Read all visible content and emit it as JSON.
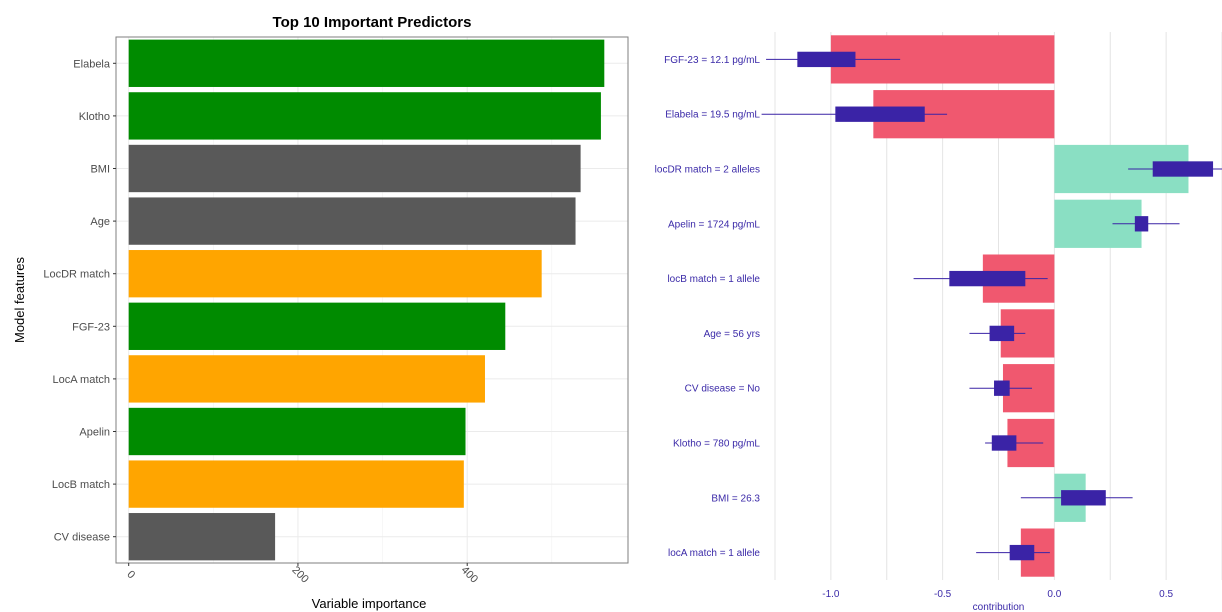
{
  "colors": {
    "green": "#008B00",
    "gray": "#595959",
    "orange": "#FFA500",
    "negative": "#F0586F",
    "positive": "#8ADFC3",
    "boxplot": "#3A23A6",
    "axis_label_right": "#3b2aa8"
  },
  "chart_data": [
    {
      "type": "bar",
      "orientation": "horizontal",
      "title": "Top 10 Important Predictors",
      "xlabel": "Variable importance",
      "ylabel": "Model features",
      "xlim": [
        -15,
        590
      ],
      "xticks": [
        0,
        200,
        400
      ],
      "grid": true,
      "categories": [
        "Elabela",
        "Klotho",
        "BMI",
        "Age",
        "LocDR match",
        "FGF-23",
        "LocA match",
        "Apelin",
        "LocB match",
        "CV disease"
      ],
      "values": [
        562,
        558,
        534,
        528,
        488,
        445,
        421,
        398,
        396,
        173
      ],
      "bar_colors": [
        "green",
        "green",
        "gray",
        "gray",
        "orange",
        "green",
        "orange",
        "green",
        "orange",
        "gray"
      ]
    },
    {
      "type": "bar",
      "subtype": "contribution_with_boxplots",
      "orientation": "horizontal",
      "xlabel": "contribution",
      "xlim": [
        -1.25,
        0.75
      ],
      "xticks": [
        -1.0,
        -0.5,
        0.0,
        0.5
      ],
      "xtick_labels": [
        "-1.0",
        "-0.5",
        "0.0",
        "0.5"
      ],
      "grid": true,
      "categories": [
        "FGF-23 = 12.1 pg/mL",
        "Elabela = 19.5 ng/mL",
        "locDR match = 2 alleles",
        "Apelin = 1724 pg/mL",
        "locB match = 1 allele",
        "Age = 56 yrs",
        "CV disease = No",
        "Klotho = 780 pg/mL",
        "BMI = 26.3",
        "locA match = 1 allele"
      ],
      "values": [
        -1.0,
        -0.81,
        0.6,
        0.39,
        -0.32,
        -0.24,
        -0.23,
        -0.21,
        0.14,
        -0.15
      ],
      "boxplots": [
        {
          "whisker_low": -1.29,
          "q1": -1.15,
          "q3": -0.89,
          "whisker_high": -0.69
        },
        {
          "whisker_low": -1.31,
          "q1": -0.98,
          "q3": -0.58,
          "whisker_high": -0.48
        },
        {
          "whisker_low": 0.33,
          "q1": 0.44,
          "q3": 0.71,
          "whisker_high": 0.82
        },
        {
          "whisker_low": 0.26,
          "q1": 0.36,
          "q3": 0.42,
          "whisker_high": 0.56
        },
        {
          "whisker_low": -0.63,
          "q1": -0.47,
          "q3": -0.13,
          "whisker_high": -0.03
        },
        {
          "whisker_low": -0.38,
          "q1": -0.29,
          "q3": -0.18,
          "whisker_high": -0.13
        },
        {
          "whisker_low": -0.38,
          "q1": -0.27,
          "q3": -0.2,
          "whisker_high": -0.1
        },
        {
          "whisker_low": -0.31,
          "q1": -0.28,
          "q3": -0.17,
          "whisker_high": -0.05
        },
        {
          "whisker_low": -0.15,
          "q1": 0.03,
          "q3": 0.23,
          "whisker_high": 0.35
        },
        {
          "whisker_low": -0.35,
          "q1": -0.2,
          "q3": -0.09,
          "whisker_high": -0.02
        }
      ]
    }
  ]
}
